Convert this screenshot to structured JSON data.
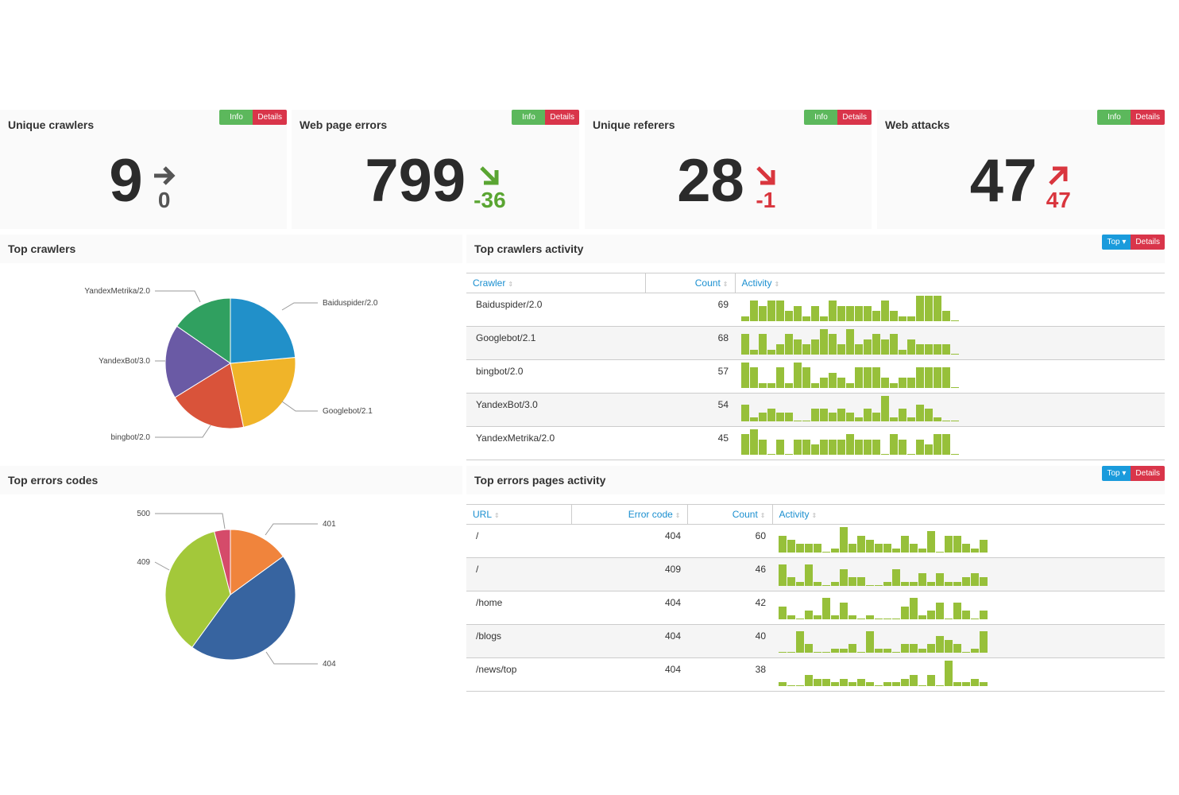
{
  "buttons": {
    "info": "Info",
    "details": "Details",
    "top": "Top"
  },
  "colors": {
    "up_bad": "#d9363e",
    "down_good": "#5aa532",
    "flat": "#555555",
    "sparkline": "#97c03a"
  },
  "kpis": [
    {
      "title": "Unique crawlers",
      "value": "9",
      "delta": "0",
      "trend": "flat-right",
      "color": "#555555"
    },
    {
      "title": "Web page errors",
      "value": "799",
      "delta": "-36",
      "trend": "down-right",
      "color": "#5aa532"
    },
    {
      "title": "Unique referers",
      "value": "28",
      "delta": "-1",
      "trend": "down-right",
      "color": "#d9363e"
    },
    {
      "title": "Web attacks",
      "value": "47",
      "delta": "47",
      "trend": "up-right",
      "color": "#d9363e"
    }
  ],
  "top_crawlers": {
    "title": "Top crawlers",
    "chart_data": {
      "type": "pie",
      "slices": [
        {
          "label": "Baiduspider/2.0",
          "value": 69,
          "color": "#2190c9"
        },
        {
          "label": "Googlebot/2.1",
          "value": 68,
          "color": "#f0b429"
        },
        {
          "label": "bingbot/2.0",
          "value": 57,
          "color": "#d9533a"
        },
        {
          "label": "YandexBot/3.0",
          "value": 54,
          "color": "#6a5aa5"
        },
        {
          "label": "YandexMetrika/2.0",
          "value": 45,
          "color": "#30a060"
        }
      ]
    }
  },
  "crawlers_activity": {
    "title": "Top crawlers activity",
    "columns": [
      "Crawler",
      "Count",
      "Activity"
    ],
    "rows": [
      {
        "crawler": "Baiduspider/2.0",
        "count": "69",
        "activity": [
          1,
          4,
          3,
          4,
          4,
          2,
          3,
          1,
          3,
          1,
          4,
          3,
          3,
          3,
          3,
          2,
          4,
          2,
          1,
          1,
          5,
          5,
          5,
          2,
          0
        ]
      },
      {
        "crawler": "Googlebot/2.1",
        "count": "68",
        "activity": [
          4,
          1,
          4,
          1,
          2,
          4,
          3,
          2,
          3,
          5,
          4,
          2,
          5,
          2,
          3,
          4,
          3,
          4,
          1,
          3,
          2,
          2,
          2,
          2,
          0
        ]
      },
      {
        "crawler": "bingbot/2.0",
        "count": "57",
        "activity": [
          5,
          4,
          1,
          1,
          4,
          1,
          5,
          4,
          1,
          2,
          3,
          2,
          1,
          4,
          4,
          4,
          2,
          1,
          2,
          2,
          4,
          4,
          4,
          4,
          0
        ]
      },
      {
        "crawler": "YandexBot/3.0",
        "count": "54",
        "activity": [
          4,
          1,
          2,
          3,
          2,
          2,
          0,
          0,
          3,
          3,
          2,
          3,
          2,
          1,
          3,
          2,
          6,
          1,
          3,
          1,
          4,
          3,
          1,
          0,
          0
        ]
      },
      {
        "crawler": "YandexMetrika/2.0",
        "count": "45",
        "activity": [
          4,
          5,
          3,
          0,
          3,
          0,
          3,
          3,
          2,
          3,
          3,
          3,
          4,
          3,
          3,
          3,
          0,
          4,
          3,
          0,
          3,
          2,
          4,
          4,
          0
        ]
      }
    ]
  },
  "top_errors": {
    "title": "Top errors codes",
    "chart_data": {
      "type": "pie",
      "slices": [
        {
          "label": "401",
          "value": 15,
          "color": "#f0843c"
        },
        {
          "label": "404",
          "value": 45,
          "color": "#3764a0"
        },
        {
          "label": "409",
          "value": 36,
          "color": "#a3c83a"
        },
        {
          "label": "500",
          "value": 4,
          "color": "#d54b6a"
        }
      ]
    }
  },
  "errors_activity": {
    "title": "Top errors pages activity",
    "columns": [
      "URL",
      "Error code",
      "Count",
      "Activity"
    ],
    "rows": [
      {
        "url": "/",
        "code": "404",
        "count": "60",
        "activity": [
          4,
          3,
          2,
          2,
          2,
          0,
          1,
          6,
          2,
          4,
          3,
          2,
          2,
          1,
          4,
          2,
          1,
          5,
          0,
          4,
          4,
          2,
          1,
          3
        ]
      },
      {
        "url": "/",
        "code": "409",
        "count": "46",
        "activity": [
          5,
          2,
          1,
          5,
          1,
          0,
          1,
          4,
          2,
          2,
          0,
          0,
          1,
          4,
          1,
          1,
          3,
          1,
          3,
          1,
          1,
          2,
          3,
          2
        ]
      },
      {
        "url": "/home",
        "code": "404",
        "count": "42",
        "activity": [
          3,
          1,
          0,
          2,
          1,
          5,
          1,
          4,
          1,
          0,
          1,
          0,
          0,
          0,
          3,
          5,
          1,
          2,
          4,
          0,
          4,
          2,
          0,
          2
        ]
      },
      {
        "url": "/blogs",
        "code": "404",
        "count": "40",
        "activity": [
          0,
          0,
          5,
          2,
          0,
          0,
          1,
          1,
          2,
          0,
          5,
          1,
          1,
          0,
          2,
          2,
          1,
          2,
          4,
          3,
          2,
          0,
          1,
          5
        ]
      },
      {
        "url": "/news/top",
        "code": "404",
        "count": "38",
        "activity": [
          1,
          0,
          0,
          3,
          2,
          2,
          1,
          2,
          1,
          2,
          1,
          0,
          1,
          1,
          2,
          3,
          0,
          3,
          0,
          7,
          1,
          1,
          2,
          1
        ]
      }
    ]
  }
}
